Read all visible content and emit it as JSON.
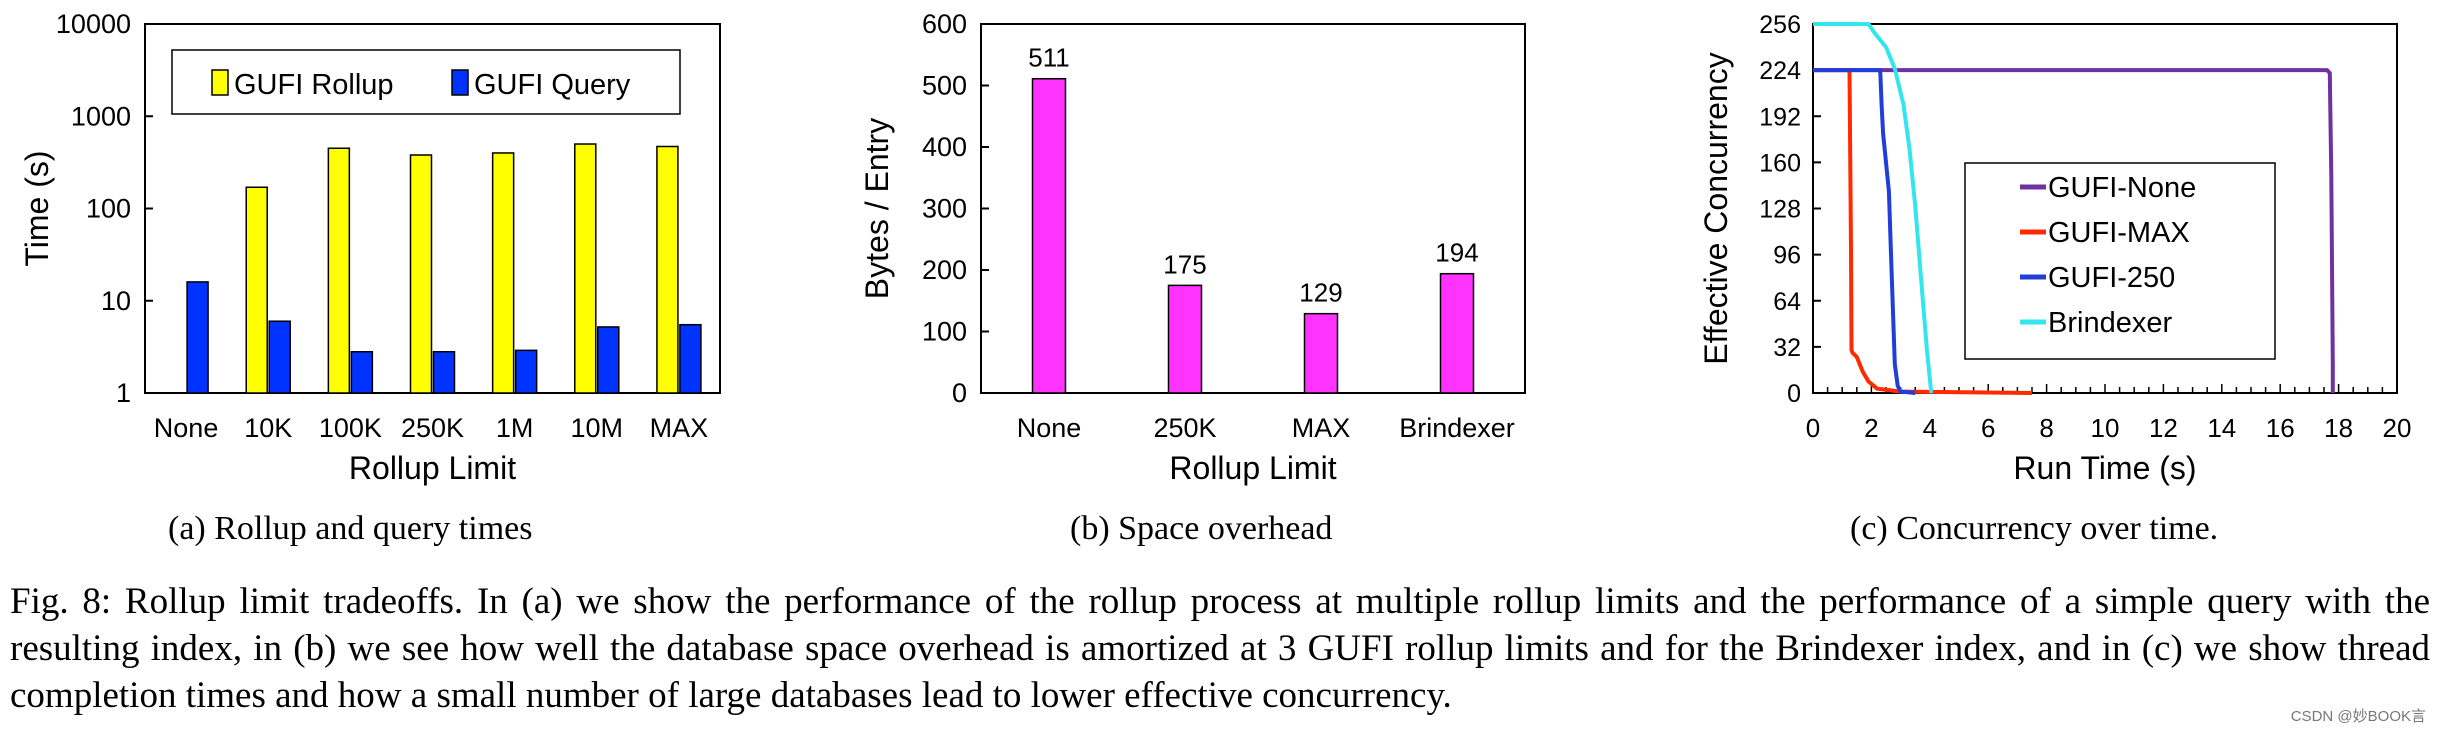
{
  "chart_data": [
    {
      "type": "bar",
      "id": "a",
      "title": "",
      "xlabel": "Rollup Limit",
      "ylabel": "Time (s)",
      "yscale": "log",
      "ylim": [
        1,
        10000
      ],
      "yticks": [
        "1",
        "10",
        "100",
        "1000",
        "10000"
      ],
      "categories": [
        "None",
        "10K",
        "100K",
        "250K",
        "1M",
        "10M",
        "MAX"
      ],
      "series": [
        {
          "name": "GUFI Rollup",
          "color": "#ffff00",
          "values": [
            null,
            170,
            450,
            380,
            400,
            500,
            470
          ]
        },
        {
          "name": "GUFI Query",
          "color": "#0033ff",
          "values": [
            16,
            6,
            2.8,
            2.8,
            2.9,
            5.2,
            5.5
          ]
        }
      ],
      "legend_position": "top-left",
      "caption": "(a) Rollup and query times"
    },
    {
      "type": "bar",
      "id": "b",
      "title": "",
      "xlabel": "Rollup Limit",
      "ylabel": "Bytes / Entry",
      "ylim": [
        0,
        600
      ],
      "yticks": [
        "0",
        "100",
        "200",
        "300",
        "400",
        "500",
        "600"
      ],
      "categories": [
        "None",
        "250K",
        "MAX",
        "Brindexer"
      ],
      "series": [
        {
          "name": "Bytes / Entry",
          "color": "#ff33ff",
          "values": [
            511,
            175,
            129,
            194
          ]
        }
      ],
      "data_labels": [
        "511",
        "175",
        "129",
        "194"
      ],
      "caption": "(b) Space overhead"
    },
    {
      "type": "line",
      "id": "c",
      "title": "",
      "xlabel": "Run Time (s)",
      "ylabel": "Effective Concurrency",
      "xlim": [
        0,
        20
      ],
      "ylim": [
        0,
        256
      ],
      "xticks": [
        "0",
        "2",
        "4",
        "6",
        "8",
        "10",
        "12",
        "14",
        "16",
        "18",
        "20"
      ],
      "yticks": [
        "0",
        "32",
        "64",
        "96",
        "128",
        "160",
        "192",
        "224",
        "256"
      ],
      "series": [
        {
          "name": "GUFI-None",
          "color": "#7030a0",
          "x": [
            0,
            17.6,
            17.7,
            17.75,
            17.8,
            17.8
          ],
          "y": [
            224,
            224,
            222,
            150,
            20,
            0
          ]
        },
        {
          "name": "GUFI-MAX",
          "color": "#ff2a00",
          "x": [
            0,
            1.25,
            1.3,
            1.32,
            1.35,
            1.5,
            1.7,
            1.9,
            2.2,
            2.6,
            3.0,
            7.5
          ],
          "y": [
            224,
            224,
            100,
            30,
            28,
            25,
            15,
            8,
            3,
            2,
            1,
            0
          ]
        },
        {
          "name": "GUFI-250",
          "color": "#1f3fd8",
          "x": [
            0,
            2.3,
            2.35,
            2.4,
            2.5,
            2.6,
            2.7,
            2.8,
            2.9,
            3.0,
            3.5
          ],
          "y": [
            224,
            224,
            200,
            180,
            160,
            140,
            80,
            20,
            5,
            1,
            0
          ]
        },
        {
          "name": "Brindexer",
          "color": "#33e6ee",
          "x": [
            0,
            1.9,
            2.1,
            2.5,
            2.8,
            3.1,
            3.3,
            3.5,
            3.7,
            3.9,
            4.0,
            4.05
          ],
          "y": [
            256,
            256,
            250,
            240,
            225,
            200,
            170,
            130,
            80,
            30,
            10,
            0
          ]
        }
      ],
      "legend_position": "center-right",
      "caption": "(c) Concurrency over time."
    }
  ],
  "figure_caption": "Fig. 8: Rollup limit tradeoffs. In (a) we show the performance of the rollup process at multiple rollup limits and the performance of a simple query with the resulting index, in (b) we see how well the database space overhead is amortized at 3 GUFI rollup limits and for the Brindexer index, and in (c) we show thread completion times and how a small number of large databases lead to lower effective concurrency.",
  "watermark": "CSDN @妙BOOK言"
}
